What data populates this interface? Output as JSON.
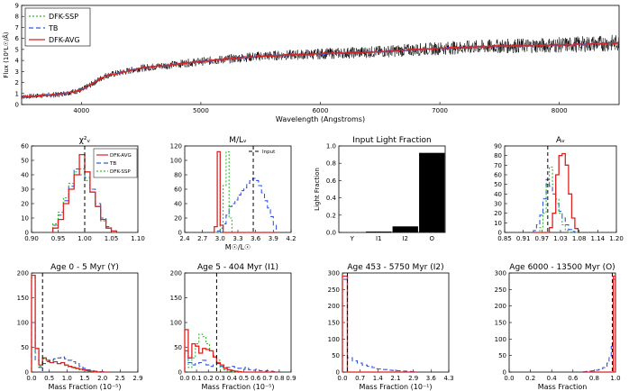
{
  "colors": {
    "ssp": "#33bb33",
    "tb": "#3355dd",
    "avg": "#dd2222",
    "obs": "#000000",
    "bar": "#000000"
  },
  "chart_data": [
    {
      "type": "line",
      "id": "spectrum",
      "title": "",
      "xlabel": "Wavelength (Angstroms)",
      "ylabel": "Flux (10⁰L☉/Å)",
      "xlim": [
        3500,
        8500
      ],
      "ylim": [
        0,
        9
      ],
      "xticks": [
        "4000",
        "5000",
        "6000",
        "7000",
        "8000"
      ],
      "yticks": [
        "0",
        "1",
        "2",
        "3",
        "4",
        "5",
        "6",
        "7",
        "8",
        "9"
      ],
      "legend": {
        "position": "top-left",
        "entries": [
          "DFK-SSP",
          "TB",
          "DFK-AVG"
        ]
      },
      "series": [
        {
          "name": "DFK-SSP",
          "x": [
            3500,
            3800,
            4000,
            4200,
            4500,
            5000,
            5500,
            6000,
            6500,
            7000,
            7500,
            8000,
            8500
          ],
          "values": [
            0.7,
            0.9,
            1.3,
            2.6,
            3.3,
            3.9,
            4.4,
            4.6,
            4.8,
            5.1,
            5.3,
            5.4,
            5.6
          ]
        },
        {
          "name": "TB",
          "x": [
            3500,
            3800,
            4000,
            4200,
            4500,
            5000,
            5500,
            6000,
            6500,
            7000,
            7500,
            8000,
            8500
          ],
          "values": [
            0.7,
            0.9,
            1.3,
            2.6,
            3.3,
            3.9,
            4.4,
            4.6,
            4.8,
            5.1,
            5.3,
            5.4,
            5.6
          ]
        },
        {
          "name": "DFK-AVG",
          "x": [
            3500,
            3800,
            4000,
            4200,
            4500,
            5000,
            5500,
            6000,
            6500,
            7000,
            7500,
            8000,
            8500
          ],
          "values": [
            0.7,
            0.9,
            1.3,
            2.6,
            3.3,
            3.9,
            4.4,
            4.6,
            4.8,
            5.1,
            5.3,
            5.4,
            5.6
          ]
        }
      ],
      "observed_noise_amplitude": 0.9
    },
    {
      "type": "histogram",
      "id": "chi2",
      "title": "χ²ᵥ",
      "xlabel": "",
      "ylabel": "",
      "xlim": [
        0.9,
        1.1
      ],
      "ylim": [
        0,
        60
      ],
      "xticks": [
        "0.90",
        "0.95",
        "1.00",
        "1.05",
        "1.10"
      ],
      "yticks": [
        "0",
        "10",
        "20",
        "30",
        "40",
        "50",
        "60"
      ],
      "legend": {
        "position": "top-right",
        "entries": [
          "DFK-AVG",
          "TB",
          "DFK-SSP"
        ]
      },
      "vline": 1.0,
      "bins": [
        0.94,
        0.95,
        0.96,
        0.97,
        0.98,
        0.99,
        1.0,
        1.01,
        1.02,
        1.03,
        1.04,
        1.05,
        1.06
      ],
      "series": [
        {
          "name": "DFK-AVG",
          "values": [
            3,
            9,
            20,
            30,
            40,
            54,
            42,
            28,
            18,
            9,
            3,
            1
          ]
        },
        {
          "name": "TB",
          "values": [
            5,
            12,
            22,
            32,
            44,
            40,
            38,
            30,
            20,
            10,
            4,
            1
          ]
        },
        {
          "name": "DFK-SSP",
          "values": [
            6,
            14,
            24,
            34,
            42,
            44,
            36,
            28,
            18,
            8,
            3,
            1
          ]
        }
      ]
    },
    {
      "type": "histogram",
      "id": "ml",
      "title": "M/Lᵥ",
      "xlabel": "M☉/L☉",
      "ylabel": "",
      "xlim": [
        2.4,
        4.2
      ],
      "ylim": [
        0,
        120
      ],
      "xticks": [
        "2.4",
        "2.7",
        "3.0",
        "3.3",
        "3.6",
        "3.9",
        "4.2"
      ],
      "yticks": [
        "0",
        "20",
        "40",
        "60",
        "80",
        "100",
        "120"
      ],
      "legend": {
        "position": "top-right",
        "entries": [
          "Input"
        ]
      },
      "vline": 3.56,
      "bins": [
        2.85,
        2.9,
        2.95,
        3.0,
        3.05,
        3.1,
        3.15,
        3.2,
        3.25,
        3.3,
        3.35,
        3.4,
        3.45,
        3.5,
        3.55,
        3.6,
        3.65,
        3.7,
        3.75,
        3.8,
        3.85,
        3.9,
        3.95
      ],
      "series": [
        {
          "name": "DFK-AVG",
          "values": [
            0,
            8,
            112,
            10,
            0,
            0,
            0,
            0,
            0,
            0,
            0,
            0,
            0,
            0,
            0,
            0,
            0,
            0,
            0,
            0,
            0,
            0
          ]
        },
        {
          "name": "TB",
          "values": [
            0,
            0,
            2,
            6,
            12,
            24,
            36,
            40,
            45,
            52,
            58,
            62,
            68,
            72,
            75,
            72,
            65,
            55,
            44,
            34,
            22,
            10
          ]
        },
        {
          "name": "DFK-SSP",
          "values": [
            0,
            0,
            0,
            10,
            65,
            112,
            20,
            0,
            0,
            0,
            0,
            0,
            0,
            0,
            0,
            0,
            0,
            0,
            0,
            0,
            0,
            0
          ]
        }
      ]
    },
    {
      "type": "bar",
      "id": "inputfrac",
      "title": "Input Light Fraction",
      "xlabel": "",
      "ylabel": "Light Fraction",
      "categories": [
        "Y",
        "I1",
        "I2",
        "O"
      ],
      "values": [
        0.0,
        0.01,
        0.07,
        0.92
      ],
      "ylim": [
        0,
        1.0
      ],
      "yticks": [
        "0.0",
        "0.2",
        "0.4",
        "0.6",
        "0.8",
        "1.0"
      ]
    },
    {
      "type": "histogram",
      "id": "av",
      "title": "Aᵥ",
      "xlabel": "",
      "ylabel": "",
      "xlim": [
        0.85,
        1.2
      ],
      "ylim": [
        0,
        90
      ],
      "xticks": [
        "0.85",
        "0.91",
        "0.97",
        "1.03",
        "1.08",
        "1.14",
        "1.20"
      ],
      "yticks": [
        "0",
        "10",
        "20",
        "30",
        "40",
        "50",
        "60",
        "70",
        "80",
        "90"
      ],
      "vline": 0.985,
      "bins": [
        0.94,
        0.95,
        0.96,
        0.97,
        0.98,
        0.99,
        1.0,
        1.01,
        1.02,
        1.03,
        1.04,
        1.05,
        1.06,
        1.07,
        1.08
      ],
      "series": [
        {
          "name": "DFK-AVG",
          "values": [
            0,
            0,
            0,
            0,
            0,
            5,
            20,
            60,
            80,
            82,
            70,
            40,
            15,
            4
          ]
        },
        {
          "name": "TB",
          "values": [
            2,
            8,
            18,
            35,
            55,
            48,
            40,
            30,
            22,
            15,
            8,
            3,
            1,
            0
          ]
        },
        {
          "name": "DFK-SSP",
          "values": [
            0,
            0,
            5,
            20,
            50,
            68,
            50,
            35,
            20,
            8,
            2,
            0,
            0,
            0
          ]
        }
      ]
    },
    {
      "type": "histogram",
      "id": "ageY",
      "title": "Age 0 - 5 Myr (Y)",
      "xlabel": "Mass Fraction (10⁻⁵)",
      "ylabel": "",
      "xlim": [
        0,
        2.9
      ],
      "ylim": [
        0,
        210
      ],
      "xticks": [
        "0.0",
        "0.5",
        "1.0",
        "1.5",
        "2.0",
        "2.5",
        "2.9"
      ],
      "yticks": [
        "0",
        "50",
        "100",
        "150",
        "200"
      ],
      "vline": 0.3,
      "bins": [
        0,
        0.1,
        0.2,
        0.3,
        0.4,
        0.5,
        0.6,
        0.7,
        0.8,
        0.9,
        1.0,
        1.1,
        1.2,
        1.3,
        1.4,
        1.5,
        1.6,
        1.7,
        1.8,
        1.9,
        2.0,
        2.1
      ],
      "series": [
        {
          "name": "DFK-AVG",
          "values": [
            205,
            50,
            15,
            30,
            25,
            20,
            22,
            18,
            20,
            15,
            12,
            10,
            8,
            6,
            5,
            3,
            2,
            1,
            0,
            0,
            0
          ]
        },
        {
          "name": "TB",
          "values": [
            105,
            25,
            10,
            18,
            22,
            25,
            28,
            30,
            32,
            28,
            25,
            22,
            18,
            12,
            8,
            5,
            3,
            2,
            1,
            1,
            0
          ]
        },
        {
          "name": "DFK-SSP",
          "values": [
            200,
            40,
            12,
            28,
            24,
            20,
            22,
            18,
            20,
            14,
            11,
            9,
            7,
            5,
            4,
            2,
            1,
            0,
            0,
            0,
            0
          ]
        }
      ]
    },
    {
      "type": "histogram",
      "id": "ageI1",
      "title": "Age 5 - 404 Myr (I1)",
      "xlabel": "Mass Fraction (10⁻⁵)",
      "ylabel": "",
      "xlim": [
        0,
        0.9
      ],
      "ylim": [
        0,
        210
      ],
      "xticks": [
        "0.0",
        "0.1",
        "0.2",
        "0.3",
        "0.4",
        "0.5",
        "0.6",
        "0.7",
        "0.8",
        "0.9"
      ],
      "yticks": [
        "0",
        "50",
        "100",
        "150",
        "200"
      ],
      "vline": 0.27,
      "bins": [
        0,
        0.03,
        0.06,
        0.09,
        0.12,
        0.15,
        0.18,
        0.21,
        0.24,
        0.27,
        0.3,
        0.33,
        0.36,
        0.39,
        0.42,
        0.45,
        0.48,
        0.51,
        0.54,
        0.57,
        0.6,
        0.63,
        0.66,
        0.69,
        0.72,
        0.75,
        0.78
      ],
      "series": [
        {
          "name": "DFK-AVG",
          "values": [
            90,
            30,
            60,
            55,
            40,
            50,
            48,
            45,
            32,
            20,
            15,
            8,
            5,
            3,
            2,
            1,
            0,
            0,
            0,
            0,
            0,
            0,
            0,
            0,
            0,
            0
          ]
        },
        {
          "name": "TB",
          "values": [
            45,
            20,
            15,
            18,
            20,
            25,
            15,
            12,
            15,
            18,
            12,
            10,
            10,
            12,
            10,
            8,
            6,
            10,
            5,
            4,
            6,
            3,
            2,
            3,
            2,
            1
          ]
        },
        {
          "name": "DFK-SSP",
          "values": [
            40,
            10,
            30,
            60,
            80,
            75,
            60,
            45,
            35,
            25,
            10,
            5,
            2,
            0,
            0,
            0,
            0,
            0,
            0,
            0,
            0,
            0,
            0,
            0,
            0,
            0
          ]
        }
      ]
    },
    {
      "type": "histogram",
      "id": "ageI2",
      "title": "Age 453 - 5750 Myr (I2)",
      "xlabel": "Mass Fraction (10⁻¹)",
      "ylabel": "",
      "xlim": [
        0,
        4.3
      ],
      "ylim": [
        0,
        310
      ],
      "xticks": [
        "0.0",
        "0.7",
        "1.4",
        "2.1",
        "2.9",
        "3.6",
        "4.3"
      ],
      "yticks": [
        "0",
        "50",
        "100",
        "150",
        "200",
        "250",
        "300"
      ],
      "vline": 0.2,
      "bins": [
        0,
        0.2,
        0.4,
        0.6,
        0.8,
        1.0,
        1.2,
        1.4,
        1.6,
        1.8,
        2.0,
        2.2,
        2.4,
        2.6,
        2.8,
        3.0
      ],
      "series": [
        {
          "name": "DFK-AVG",
          "values": [
            300,
            0,
            0,
            0,
            0,
            0,
            0,
            0,
            0,
            0,
            0,
            0,
            0,
            0,
            0
          ]
        },
        {
          "name": "TB",
          "values": [
            290,
            45,
            35,
            28,
            22,
            18,
            14,
            10,
            8,
            6,
            5,
            4,
            3,
            2,
            1
          ]
        },
        {
          "name": "DFK-SSP",
          "values": [
            300,
            0,
            0,
            0,
            0,
            0,
            0,
            0,
            0,
            0,
            0,
            0,
            0,
            0,
            0
          ]
        }
      ]
    },
    {
      "type": "histogram",
      "id": "ageO",
      "title": "Age 6000 - 13500 Myr (O)",
      "xlabel": "Mass Fraction",
      "ylabel": "",
      "xlim": [
        0,
        1.0
      ],
      "ylim": [
        0,
        310
      ],
      "xticks": [
        "0.0",
        "0.2",
        "0.4",
        "0.6",
        "0.8",
        "1.0"
      ],
      "yticks": [
        "0",
        "50",
        "100",
        "150",
        "200",
        "250",
        "300"
      ],
      "vline": 0.97,
      "bins": [
        0.7,
        0.72,
        0.74,
        0.76,
        0.78,
        0.8,
        0.82,
        0.84,
        0.86,
        0.88,
        0.9,
        0.92,
        0.94,
        0.96,
        0.98,
        1.0
      ],
      "series": [
        {
          "name": "DFK-AVG",
          "values": [
            0,
            0,
            0,
            0,
            0,
            0,
            0,
            0,
            0,
            0,
            0,
            0,
            0,
            0,
            300
          ]
        },
        {
          "name": "TB",
          "values": [
            1,
            2,
            2,
            3,
            4,
            5,
            6,
            8,
            10,
            14,
            18,
            28,
            45,
            80,
            290
          ]
        },
        {
          "name": "DFK-SSP",
          "values": [
            0,
            0,
            0,
            0,
            0,
            0,
            0,
            0,
            0,
            0,
            0,
            0,
            0,
            0,
            300
          ]
        }
      ]
    }
  ]
}
